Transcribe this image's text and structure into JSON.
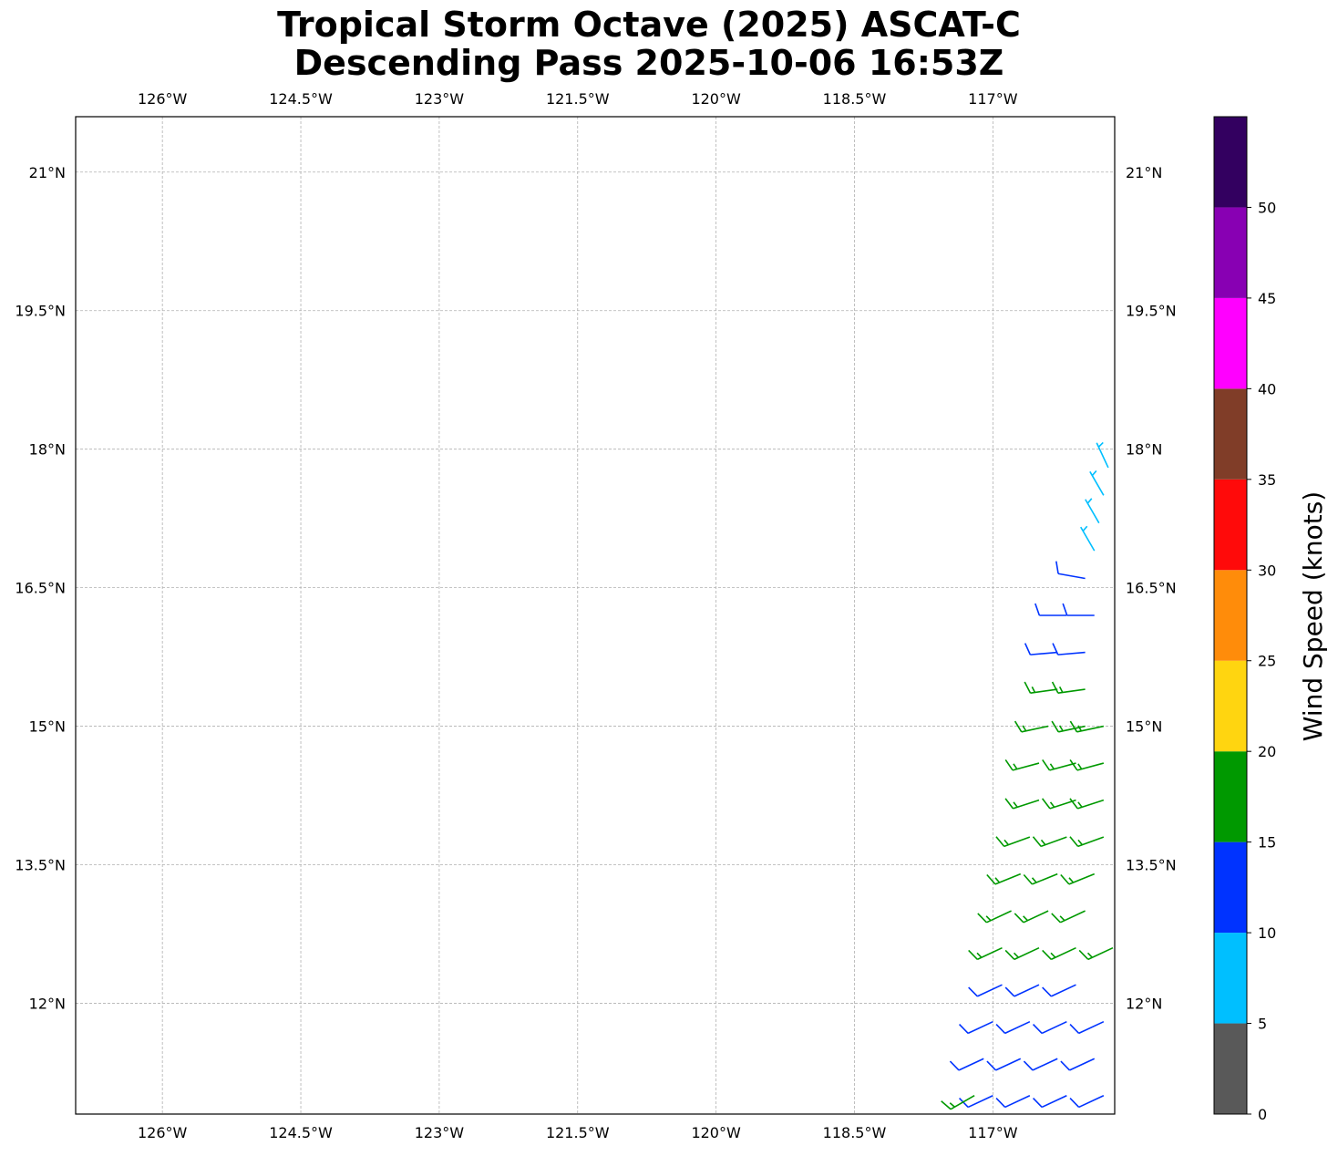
{
  "chart_data": {
    "type": "wind-barb",
    "title": [
      "Tropical Storm Octave (2025) ASCAT-C",
      "Descending Pass 2025-10-06 16:53Z"
    ],
    "xlim": [
      -126.94,
      -115.68
    ],
    "ylim": [
      10.8,
      21.6
    ],
    "xticks": [
      {
        "value": -126,
        "label": "126°W"
      },
      {
        "value": -124.5,
        "label": "124.5°W"
      },
      {
        "value": -123,
        "label": "123°W"
      },
      {
        "value": -121.5,
        "label": "121.5°W"
      },
      {
        "value": -120,
        "label": "120°W"
      },
      {
        "value": -118.5,
        "label": "118.5°W"
      },
      {
        "value": -117,
        "label": "117°W"
      }
    ],
    "yticks": [
      {
        "value": 12,
        "label": "12°N"
      },
      {
        "value": 13.5,
        "label": "13.5°N"
      },
      {
        "value": 15,
        "label": "15°N"
      },
      {
        "value": 16.5,
        "label": "16.5°N"
      },
      {
        "value": 18,
        "label": "18°N"
      },
      {
        "value": 19.5,
        "label": "19.5°N"
      },
      {
        "value": 21,
        "label": "21°N"
      }
    ],
    "grid": true,
    "barbs": {
      "lon": [
        -117.0,
        -116.6,
        -116.2,
        -115.8,
        -117.2,
        -117.1,
        -116.7,
        -116.3,
        -115.9,
        -117.0,
        -116.6,
        -116.2,
        -115.8,
        -116.9,
        -116.5,
        -116.1,
        -116.9,
        -116.5,
        -116.1,
        -115.7,
        -116.8,
        -116.4,
        -116.0,
        -116.7,
        -116.3,
        -115.9,
        -116.6,
        -116.2,
        -115.8,
        -116.5,
        -116.1,
        -115.8,
        -116.5,
        -116.1,
        -115.8,
        -116.4,
        -116.0,
        -115.8,
        -116.3,
        -116.0,
        -116.3,
        -116.0,
        -116.2,
        -115.9,
        -116.0,
        -115.9,
        -115.85,
        -115.8,
        -115.75
      ],
      "lat": [
        11.0,
        11.0,
        11.0,
        11.0,
        11.0,
        11.4,
        11.4,
        11.4,
        11.4,
        11.8,
        11.8,
        11.8,
        11.8,
        12.2,
        12.2,
        12.2,
        12.6,
        12.6,
        12.6,
        12.6,
        13.0,
        13.0,
        13.0,
        13.4,
        13.4,
        13.4,
        13.8,
        13.8,
        13.8,
        14.2,
        14.2,
        14.2,
        14.6,
        14.6,
        14.6,
        15.0,
        15.0,
        15.0,
        15.4,
        15.4,
        15.8,
        15.8,
        16.2,
        16.2,
        16.6,
        16.9,
        17.2,
        17.5,
        17.8
      ],
      "speed": [
        13,
        13,
        13,
        13,
        16,
        13,
        13,
        13,
        13,
        13,
        13,
        13,
        13,
        12,
        12,
        12,
        17,
        17,
        17,
        17,
        17,
        17,
        17,
        17,
        17,
        17,
        17,
        17,
        17,
        17,
        17,
        17,
        16,
        16,
        16,
        16,
        16,
        16,
        16,
        16,
        13,
        13,
        13,
        13,
        12,
        8,
        8,
        8,
        7
      ],
      "direction": [
        245,
        245,
        245,
        245,
        240,
        245,
        245,
        245,
        245,
        245,
        245,
        245,
        245,
        245,
        245,
        245,
        245,
        245,
        245,
        245,
        245,
        245,
        245,
        248,
        248,
        248,
        250,
        250,
        250,
        252,
        252,
        252,
        255,
        255,
        255,
        258,
        258,
        258,
        262,
        262,
        265,
        265,
        270,
        270,
        280,
        330,
        330,
        330,
        335
      ]
    },
    "colorbar": {
      "label": "Wind Speed (knots)",
      "levels": [
        0,
        5,
        10,
        15,
        20,
        25,
        30,
        35,
        40,
        45,
        50,
        55
      ],
      "colors": [
        "#595959",
        "#00bfff",
        "#0033ff",
        "#009900",
        "#ffd510",
        "#ff8c0a",
        "#ff0a0a",
        "#803d28",
        "#ff00ff",
        "#8800b3",
        "#330060"
      ],
      "ticks": [
        0,
        5,
        10,
        15,
        20,
        25,
        30,
        35,
        40,
        45,
        50
      ]
    }
  }
}
